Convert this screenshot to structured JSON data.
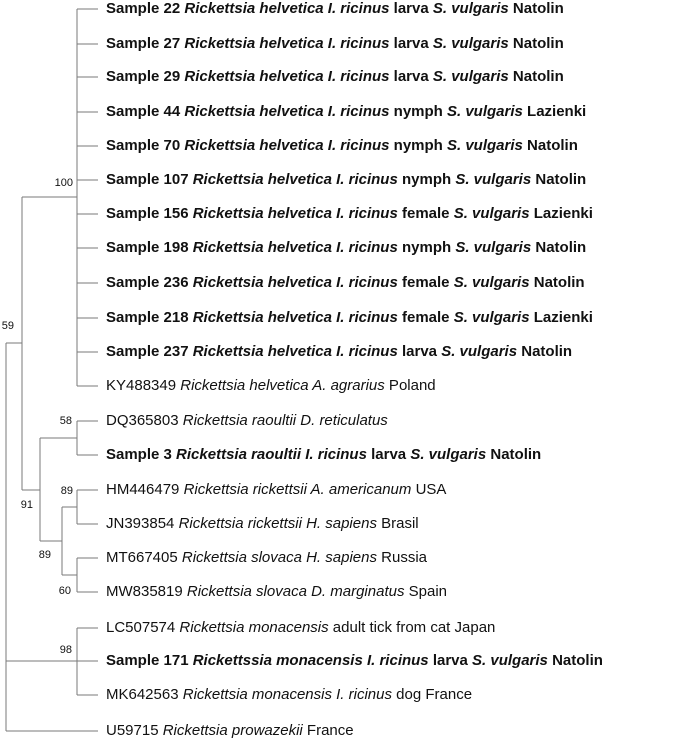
{
  "leaves": [
    {
      "bold": true,
      "parts": [
        {
          "t": "Sample 22 "
        },
        {
          "t": "Rickettsia helvetica I. ricinus",
          "i": true
        },
        {
          "t": " larva "
        },
        {
          "t": "S. vulgaris",
          "i": true
        },
        {
          "t": " Natolin"
        }
      ]
    },
    {
      "bold": true,
      "parts": [
        {
          "t": "Sample 27 "
        },
        {
          "t": "Rickettsia helvetica I. ricinus",
          "i": true
        },
        {
          "t": " larva "
        },
        {
          "t": "S. vulgaris",
          "i": true
        },
        {
          "t": " Natolin"
        }
      ]
    },
    {
      "bold": true,
      "parts": [
        {
          "t": "Sample 29 "
        },
        {
          "t": "Rickettsia helvetica I. ricinus",
          "i": true
        },
        {
          "t": " larva "
        },
        {
          "t": "S. vulgaris",
          "i": true
        },
        {
          "t": " Natolin"
        }
      ]
    },
    {
      "bold": true,
      "parts": [
        {
          "t": "Sample 44 "
        },
        {
          "t": "Rickettsia helvetica I. ricinus",
          "i": true
        },
        {
          "t": " nymph "
        },
        {
          "t": "S. vulgaris",
          "i": true
        },
        {
          "t": " Lazienki"
        }
      ]
    },
    {
      "bold": true,
      "parts": [
        {
          "t": "Sample 70 "
        },
        {
          "t": "Rickettsia helvetica I. ricinus",
          "i": true
        },
        {
          "t": " nymph "
        },
        {
          "t": "S. vulgaris",
          "i": true
        },
        {
          "t": " Natolin"
        }
      ]
    },
    {
      "bold": true,
      "parts": [
        {
          "t": "Sample 107 "
        },
        {
          "t": "Rickettsia helvetica I. ricinus",
          "i": true
        },
        {
          "t": " nymph "
        },
        {
          "t": "S. vulgaris",
          "i": true
        },
        {
          "t": " Natolin"
        }
      ]
    },
    {
      "bold": true,
      "parts": [
        {
          "t": "Sample 156 "
        },
        {
          "t": "Rickettsia helvetica I. ricinus",
          "i": true
        },
        {
          "t": " female "
        },
        {
          "t": "S. vulgaris",
          "i": true
        },
        {
          "t": "  Lazienki"
        }
      ]
    },
    {
      "bold": true,
      "parts": [
        {
          "t": "Sample 198 "
        },
        {
          "t": "Rickettsia helvetica I. ricinus",
          "i": true
        },
        {
          "t": " nymph "
        },
        {
          "t": "S. vulgaris",
          "i": true
        },
        {
          "t": " Natolin"
        }
      ]
    },
    {
      "bold": true,
      "parts": [
        {
          "t": "Sample 236 "
        },
        {
          "t": "Rickettsia helvetica I. ricinus",
          "i": true
        },
        {
          "t": " female "
        },
        {
          "t": "S. vulgaris",
          "i": true
        },
        {
          "t": "  Natolin"
        }
      ]
    },
    {
      "bold": true,
      "parts": [
        {
          "t": "Sample 218 "
        },
        {
          "t": "Rickettsia helvetica I. ricinus",
          "i": true
        },
        {
          "t": " female "
        },
        {
          "t": "S. vulgaris",
          "i": true
        },
        {
          "t": "  Lazienki"
        }
      ]
    },
    {
      "bold": true,
      "parts": [
        {
          "t": "Sample 237 "
        },
        {
          "t": "Rickettsia helvetica I. ricinus",
          "i": true
        },
        {
          "t": " larva "
        },
        {
          "t": "S. vulgaris",
          "i": true
        },
        {
          "t": " Natolin"
        }
      ]
    },
    {
      "bold": false,
      "parts": [
        {
          "t": "KY488349 "
        },
        {
          "t": "Rickettsia helvetica A. agrarius",
          "i": true
        },
        {
          "t": " Poland"
        }
      ]
    },
    {
      "bold": false,
      "parts": [
        {
          "t": "DQ365803 "
        },
        {
          "t": "Rickettsia raoultii D. reticulatus",
          "i": true
        }
      ]
    },
    {
      "bold": true,
      "parts": [
        {
          "t": "Sample 3 "
        },
        {
          "t": "Rickettsia raoultii I. ricinus",
          "i": true
        },
        {
          "t": " larva "
        },
        {
          "t": "S. vulgaris",
          "i": true
        },
        {
          "t": " Natolin"
        }
      ]
    },
    {
      "bold": false,
      "parts": [
        {
          "t": "HM446479 "
        },
        {
          "t": "Rickettsia rickettsii A. americanum",
          "i": true
        },
        {
          "t": " USA"
        }
      ]
    },
    {
      "bold": false,
      "parts": [
        {
          "t": "JN393854 "
        },
        {
          "t": "Rickettsia rickettsii H. sapiens",
          "i": true
        },
        {
          "t": " Brasil"
        }
      ]
    },
    {
      "bold": false,
      "parts": [
        {
          "t": "MT667405 "
        },
        {
          "t": "Rickettsia slovaca H. sapiens",
          "i": true
        },
        {
          "t": " Russia"
        }
      ]
    },
    {
      "bold": false,
      "parts": [
        {
          "t": "MW835819 "
        },
        {
          "t": "Rickettsia slovaca  D. marginatus",
          "i": true
        },
        {
          "t": " Spain"
        }
      ]
    },
    {
      "bold": false,
      "parts": [
        {
          "t": "LC507574  "
        },
        {
          "t": "Rickettsia monacensis",
          "i": true
        },
        {
          "t": " adult tick from cat Japan"
        }
      ]
    },
    {
      "bold": true,
      "parts": [
        {
          "t": "Sample 171 "
        },
        {
          "t": "Rickettssia monacensis I. ricinus",
          "i": true
        },
        {
          "t": " larva "
        },
        {
          "t": "S. vulgaris",
          "i": true
        },
        {
          "t": " Natolin"
        }
      ]
    },
    {
      "bold": false,
      "parts": [
        {
          "t": "MK642563 "
        },
        {
          "t": "Rickettsia monacensis I. ricinus",
          "i": true
        },
        {
          "t": " dog France"
        }
      ]
    },
    {
      "bold": false,
      "parts": [
        {
          "t": "U59715 "
        },
        {
          "t": "Rickettsia prowazekii",
          "i": true
        },
        {
          "t": " France"
        }
      ]
    }
  ],
  "bootstraps": {
    "helvetica_clade": "100",
    "root_ingroup": "59",
    "raoultii_clade": "58",
    "spotted_fever_clade": "91",
    "rickettsii_clade": "89",
    "rickettsii_slovaca_clade": "89",
    "slovaca_clade": "60",
    "monacensis_clade": "98"
  },
  "colors": {
    "branch": "#7a7a7a",
    "text": "#111111"
  }
}
